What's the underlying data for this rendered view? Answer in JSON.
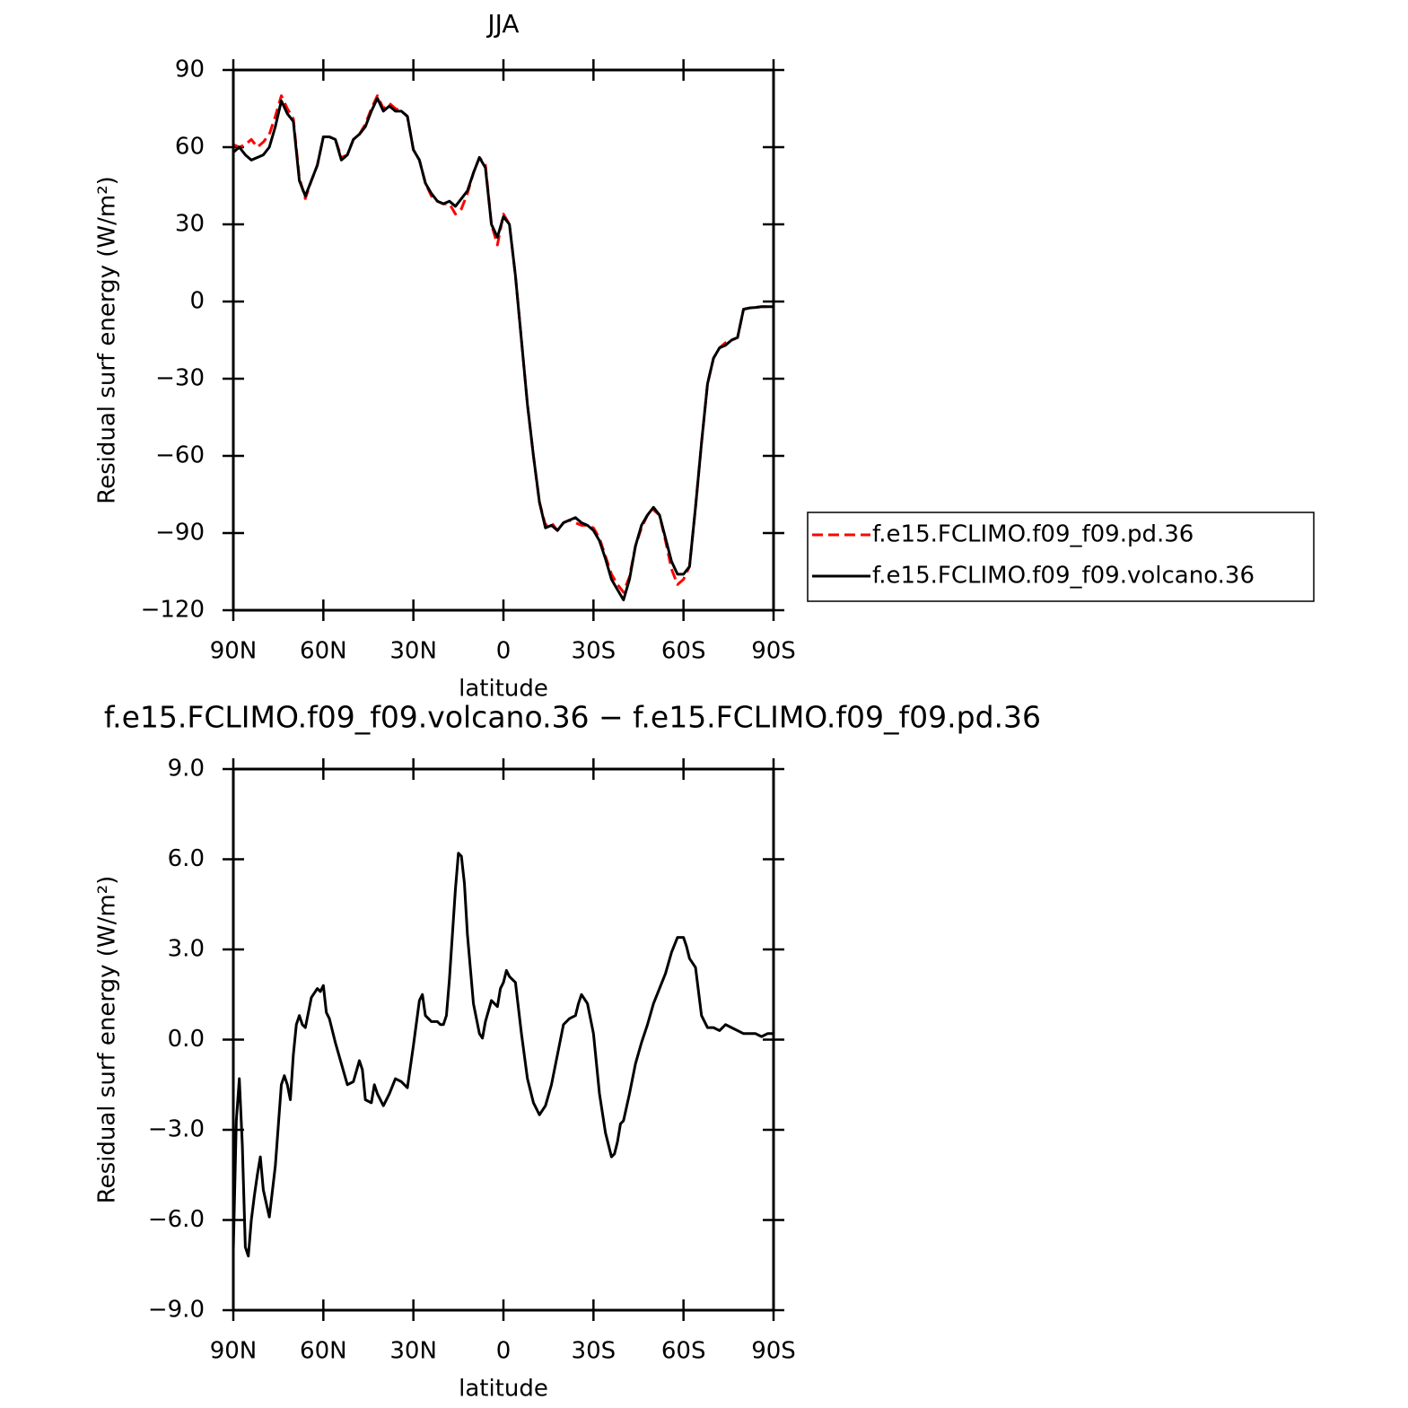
{
  "chart_data": [
    {
      "type": "line",
      "title": "JJA",
      "xlabel": "latitude",
      "ylabel": "Residual surf energy (W/m²)",
      "x": [
        90,
        88,
        86,
        84,
        82,
        80,
        78,
        76,
        74,
        72,
        70,
        68,
        66,
        64,
        62,
        60,
        58,
        56,
        54,
        52,
        50,
        48,
        46,
        44,
        42,
        40,
        38,
        36,
        34,
        32,
        30,
        28,
        26,
        24,
        22,
        20,
        18,
        16,
        14,
        12,
        10,
        8,
        6,
        4,
        2,
        0,
        -2,
        -4,
        -6,
        -8,
        -10,
        -12,
        -14,
        -16,
        -18,
        -20,
        -22,
        -24,
        -26,
        -28,
        -30,
        -32,
        -34,
        -36,
        -38,
        -40,
        -42,
        -44,
        -46,
        -48,
        -50,
        -52,
        -54,
        -56,
        -58,
        -60,
        -62,
        -64,
        -66,
        -68,
        -70,
        -72,
        -74,
        -76,
        -78,
        -80,
        -82,
        -84,
        -86,
        -88,
        -90
      ],
      "series": [
        {
          "name": "f.e15.FCLIMO.f09_f09.pd.36",
          "color": "#ff0000",
          "dashed": true,
          "values": [
            61,
            60,
            61,
            63,
            60,
            62,
            65,
            72,
            80,
            75,
            71,
            48,
            40,
            47,
            53,
            64,
            64,
            63,
            56,
            57,
            63,
            65,
            69,
            75,
            80,
            75,
            77,
            75,
            74,
            72,
            59,
            55,
            46,
            41,
            39,
            38,
            38,
            34,
            36,
            42,
            50,
            56,
            53,
            30,
            22,
            34,
            30,
            10,
            -15,
            -40,
            -60,
            -78,
            -87,
            -86,
            -89,
            -86,
            -85,
            -86,
            -87,
            -87,
            -88,
            -92,
            -99,
            -106,
            -110,
            -113,
            -107,
            -95,
            -88,
            -83,
            -81,
            -83,
            -93,
            -104,
            -110,
            -108,
            -103,
            -80,
            -55,
            -32,
            -22,
            -18,
            -16,
            -15,
            -14,
            -3,
            -2.5,
            -2.3,
            -2,
            -2,
            -2
          ]
        },
        {
          "name": "f.e15.FCLIMO.f09_f09.volcano.36",
          "color": "#000000",
          "dashed": false,
          "values": [
            58,
            60,
            57,
            55,
            56,
            57,
            60,
            68,
            78,
            73,
            70,
            47,
            41,
            47,
            53,
            64,
            64,
            63,
            55,
            57,
            63,
            65,
            68,
            74,
            79,
            74,
            76,
            74,
            74,
            72,
            59,
            55,
            46,
            42,
            39,
            38,
            39,
            37,
            40,
            43,
            50,
            56,
            52,
            30,
            25,
            33,
            30,
            10,
            -15,
            -40,
            -60,
            -78,
            -88,
            -87,
            -89,
            -86,
            -85,
            -84,
            -86,
            -87,
            -89,
            -93,
            -100,
            -108,
            -112,
            -116,
            -108,
            -95,
            -87,
            -83,
            -80,
            -83,
            -92,
            -101,
            -106,
            -106,
            -103,
            -80,
            -55,
            -32,
            -22,
            -18,
            -17,
            -15,
            -14,
            -3,
            -2.5,
            -2.3,
            -2,
            -2,
            -2
          ]
        }
      ],
      "xlim": [
        90,
        -90
      ],
      "xticks": [
        {
          "value": 90,
          "label": "90N"
        },
        {
          "value": 60,
          "label": "60N"
        },
        {
          "value": 30,
          "label": "30N"
        },
        0,
        {
          "value": -30,
          "label": "30S"
        },
        {
          "value": -60,
          "label": "60S"
        },
        {
          "value": -90,
          "label": "90S"
        }
      ],
      "ylim": [
        -120,
        90
      ],
      "yticks": [
        {
          "value": -120,
          "label": "−120"
        },
        {
          "value": -90,
          "label": "−90"
        },
        {
          "value": -60,
          "label": "−60"
        },
        {
          "value": -30,
          "label": "−30"
        },
        0,
        30,
        60,
        90
      ],
      "legend": "right"
    },
    {
      "type": "line",
      "title": "f.e15.FCLIMO.f09_f09.volcano.36 − f.e15.FCLIMO.f09_f09.pd.36",
      "xlabel": "latitude",
      "ylabel": "Residual surf energy (W/m²)",
      "x": [
        90,
        89,
        88,
        87,
        86,
        85,
        84,
        83,
        82,
        81,
        80,
        78,
        76,
        74,
        73,
        72,
        71,
        70,
        69,
        68,
        67,
        66,
        64,
        62,
        61,
        60,
        59,
        58,
        56,
        54,
        52,
        50,
        48,
        47,
        46,
        44,
        43,
        42,
        40,
        38,
        36,
        34,
        32,
        30,
        28,
        27,
        26,
        24,
        22,
        21,
        20,
        19,
        18,
        16,
        15,
        14,
        13,
        12,
        10,
        8,
        7,
        6,
        4,
        2,
        1,
        0,
        -1,
        -2,
        -4,
        -6,
        -8,
        -10,
        -12,
        -14,
        -16,
        -18,
        -20,
        -22,
        -24,
        -25,
        -26,
        -28,
        -30,
        -32,
        -34,
        -36,
        -37,
        -38,
        -39,
        -40,
        -42,
        -44,
        -46,
        -48,
        -50,
        -52,
        -54,
        -56,
        -58,
        -60,
        -61,
        -62,
        -64,
        -66,
        -68,
        -70,
        -72,
        -74,
        -76,
        -78,
        -80,
        -82,
        -84,
        -86,
        -88,
        -90
      ],
      "series": [
        {
          "name": "f.e15.FCLIMO.f09_f09.volcano.36 − f.e15.FCLIMO.f09_f09.pd.36",
          "color": "#000000",
          "dashed": false,
          "values": [
            -7,
            -2.7,
            -1.3,
            -3.5,
            -6.9,
            -7.2,
            -6,
            -5.2,
            -4.5,
            -3.9,
            -5,
            -5.9,
            -4.2,
            -1.5,
            -1.2,
            -1.5,
            -2,
            -0.5,
            0.5,
            0.8,
            0.5,
            0.4,
            1.4,
            1.7,
            1.6,
            1.8,
            0.9,
            0.7,
            -0.1,
            -0.8,
            -1.5,
            -1.4,
            -0.7,
            -1,
            -2,
            -2.1,
            -1.5,
            -1.8,
            -2.2,
            -1.8,
            -1.3,
            -1.4,
            -1.6,
            -0.2,
            1.3,
            1.5,
            0.8,
            0.6,
            0.6,
            0.5,
            0.5,
            0.8,
            2,
            5,
            6.2,
            6.1,
            5.2,
            3.5,
            1.2,
            0.2,
            0.05,
            0.6,
            1.3,
            1.1,
            1.7,
            1.9,
            2.3,
            2.1,
            1.9,
            0.2,
            -1.3,
            -2.1,
            -2.5,
            -2.2,
            -1.5,
            -0.5,
            0.5,
            0.7,
            0.8,
            1.2,
            1.5,
            1.2,
            0.2,
            -1.8,
            -3.1,
            -3.9,
            -3.8,
            -3.4,
            -2.8,
            -2.7,
            -1.8,
            -0.8,
            -0.1,
            0.5,
            1.2,
            1.7,
            2.2,
            2.9,
            3.4,
            3.4,
            3.1,
            2.7,
            2.4,
            0.8,
            0.4,
            0.4,
            0.3,
            0.5,
            0.4,
            0.3,
            0.2,
            0.2,
            0.2,
            0.1,
            0.2,
            0.2
          ]
        }
      ],
      "xlim": [
        90,
        -90
      ],
      "xticks": [
        {
          "value": 90,
          "label": "90N"
        },
        {
          "value": 60,
          "label": "60N"
        },
        {
          "value": 30,
          "label": "30N"
        },
        0,
        {
          "value": -30,
          "label": "30S"
        },
        {
          "value": -60,
          "label": "60S"
        },
        {
          "value": -90,
          "label": "90S"
        }
      ],
      "ylim": [
        -9,
        9
      ],
      "yticks": [
        {
          "value": -9,
          "label": "−9.0"
        },
        {
          "value": -6,
          "label": "−6.0"
        },
        {
          "value": -3,
          "label": "−3.0"
        },
        {
          "value": 0,
          "label": "0.0"
        },
        {
          "value": 3,
          "label": "3.0"
        },
        {
          "value": 6,
          "label": "6.0"
        },
        {
          "value": 9,
          "label": "9.0"
        }
      ]
    }
  ]
}
